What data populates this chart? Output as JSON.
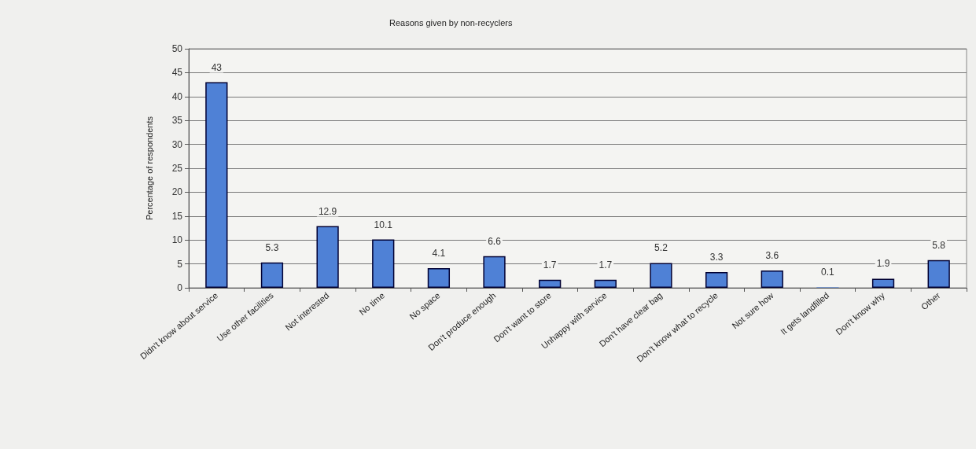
{
  "chart_data": {
    "type": "bar",
    "title": "Reasons given by non-recyclers",
    "ylabel": "Percentage of respondents",
    "categories": [
      "Didn't know about service",
      "Use other facilities",
      "Not interested",
      "No time",
      "No space",
      "Don't produce enough",
      "Don't want to store",
      "Unhappy with service",
      "Don't have clear bag",
      "Don't know what to recycle",
      "Not sure how",
      "It gets landfilled",
      "Don't know why",
      "Other"
    ],
    "values": [
      43,
      5.3,
      12.9,
      10.1,
      4.1,
      6.6,
      1.7,
      1.7,
      5.2,
      3.3,
      3.6,
      0.1,
      1.9,
      5.8
    ],
    "color": "#4f81d6",
    "ylim": [
      0,
      50
    ],
    "yticks": [
      0,
      5,
      10,
      15,
      20,
      25,
      30,
      35,
      40,
      45,
      50
    ],
    "grid": "y",
    "data_labels": true
  }
}
